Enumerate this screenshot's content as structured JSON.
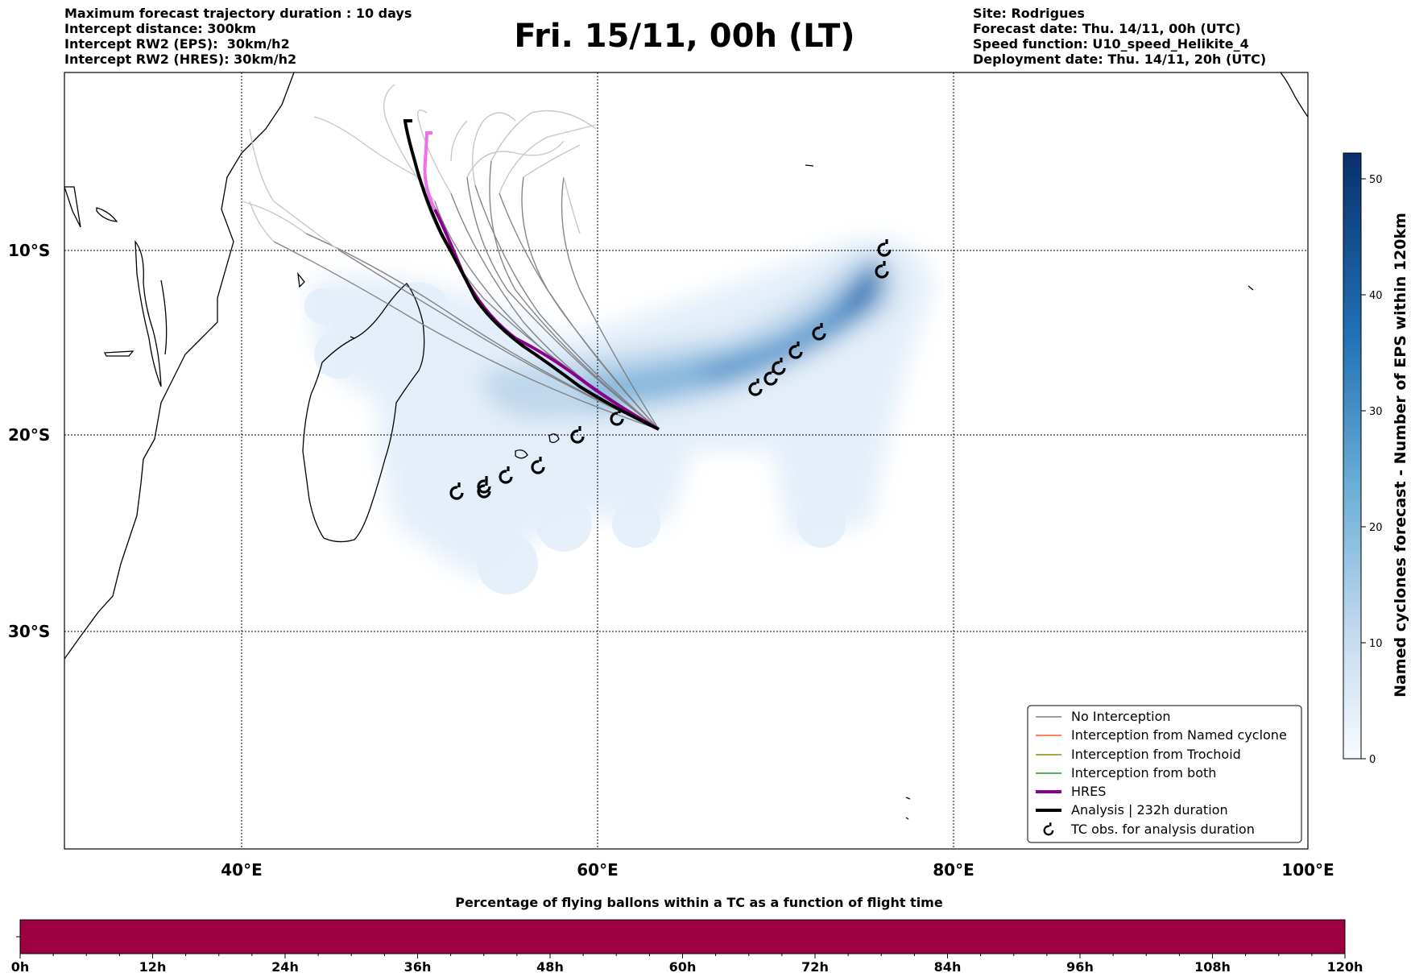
{
  "header_left": {
    "line1": "Maximum forecast trajectory duration : 10 days",
    "line2": "Intercept distance: 300km",
    "line3": "Intercept RW2 (EPS):  30km/h2",
    "line4": "Intercept RW2 (HRES): 30km/h2"
  },
  "title": "Fri. 15/11, 00h (LT)",
  "header_right": {
    "line1": "Site: Rodrigues",
    "line2": "Forecast date: Thu. 14/11, 00h (UTC)",
    "line3": "Speed function: U10_speed_Helikite_4",
    "line4": "Deployment date: Thu. 14/11, 20h (UTC)"
  },
  "map": {
    "lat_labels": [
      "10°S",
      "20°S",
      "30°S"
    ],
    "lon_labels": [
      "40°E",
      "60°E",
      "80°E",
      "100°E"
    ]
  },
  "legend": {
    "items": [
      {
        "label": "No Interception",
        "color": "#808080"
      },
      {
        "label": "Interception from Named cyclone",
        "color": "#ff5a1f"
      },
      {
        "label": "Interception from Trochoid",
        "color": "#8a8a00"
      },
      {
        "label": "Interception from both",
        "color": "#1a9a1a"
      },
      {
        "label": "HRES",
        "color": "#8b008b"
      },
      {
        "label": "Analysis | 232h duration",
        "color": "#000000"
      },
      {
        "label": "TC obs. for analysis duration",
        "symbol": "cyclone-icon"
      }
    ]
  },
  "colorbar": {
    "title": "Named cyclones forecast - Number of EPS within 120km",
    "ticks": [
      "0",
      "10",
      "20",
      "30",
      "40",
      "50"
    ],
    "colors": [
      "#f7fbff",
      "#084594"
    ]
  },
  "timeline": {
    "title": "Percentage of flying ballons within a TC as a function of flight time",
    "ticks": [
      "0h",
      "12h",
      "24h",
      "36h",
      "48h",
      "60h",
      "72h",
      "84h",
      "96h",
      "108h",
      "120h"
    ],
    "fill_color": "#9e0142"
  }
}
